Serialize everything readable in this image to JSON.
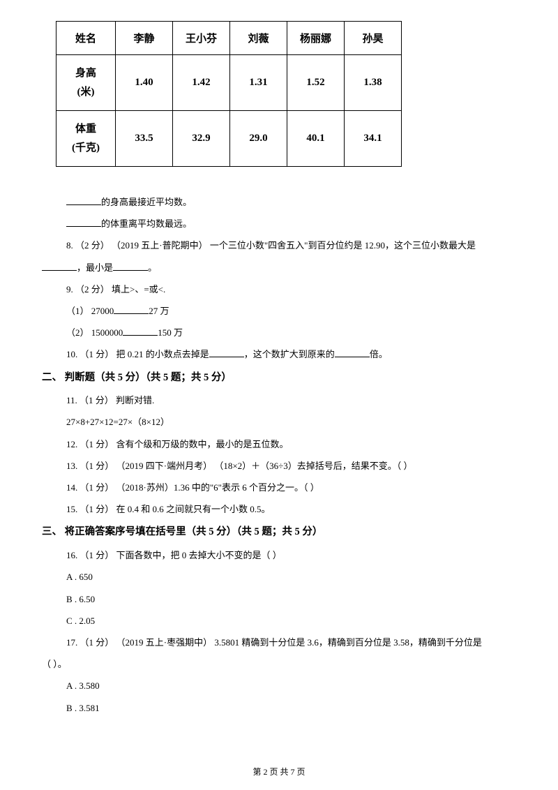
{
  "table": {
    "headers": [
      "姓名",
      "李静",
      "王小芬",
      "刘薇",
      "杨丽娜",
      "孙昊"
    ],
    "row1_label_a": "身高",
    "row1_label_b": "(米)",
    "row1": [
      "1.40",
      "1.42",
      "1.31",
      "1.52",
      "1.38"
    ],
    "row2_label_a": "体重",
    "row2_label_b": "(千克)",
    "row2": [
      "33.5",
      "32.9",
      "29.0",
      "40.1",
      "34.1"
    ]
  },
  "q7a": "的身高最接近平均数。",
  "q7b": "的体重离平均数最远。",
  "q8a": "8.  （2 分） （2019 五上·普陀期中） 一个三位小数\"四舍五入\"到百分位约是 12.90，这个三位小数最大是",
  "q8b_left": "，最小是",
  "q8b_right": "。",
  "q9": "9.  （2 分） 填上>、=或<.",
  "q9_1_left": "（1） 27000",
  "q9_1_right": "27 万",
  "q9_2_left": "（2） 1500000",
  "q9_2_right": "150 万",
  "q10_left": "10.  （1 分） 把 0.21 的小数点去掉是",
  "q10_mid": "，这个数扩大到原来的",
  "q10_right": "倍。",
  "section2": "二、 判断题（共 5 分）（共 5 题；共 5 分）",
  "q11": "11.  （1 分） 判断对错.",
  "q11_expr": "27×8+27×12=27×（8×12）",
  "q12": "12.  （1 分） 含有个级和万级的数中，最小的是五位数。",
  "q13": "13.  （1 分） （2019 四下·端州月考） （18×2）＋（36÷3）去掉括号后，结果不变。（       ）",
  "q14": "14.  （1 分） （2018·苏州）1.36 中的\"6\"表示 6 个百分之一。（       ）",
  "q15": "15.  （1 分） 在 0.4 和 0.6 之间就只有一个小数 0.5。",
  "section3": "三、 将正确答案序号填在括号里（共 5 分）（共 5 题；共 5 分）",
  "q16": "16.  （1 分） 下面各数中，把 0 去掉大小不变的是（       ）",
  "q16a": "A  .  650",
  "q16b": "B  .  6.50",
  "q16c": "C  .  2.05",
  "q17a": "17.  （1 分） （2019 五上·枣强期中） 3.5801 精确到十分位是 3.6，精确到百分位是 3.58，精确到千分位是",
  "q17b": "（         ）。",
  "q17_a": "A  .  3.580",
  "q17_b": "B  .  3.581",
  "footer": "第 2 页 共 7 页"
}
